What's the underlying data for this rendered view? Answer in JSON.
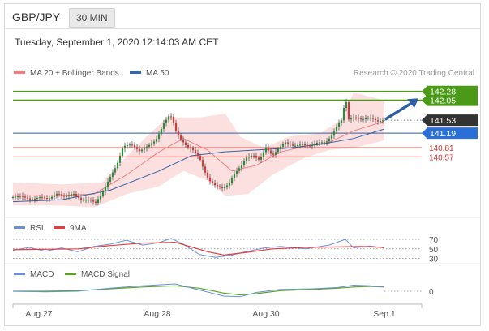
{
  "header": {
    "symbol": "GBP/JPY",
    "timeframe": "30 MIN"
  },
  "date_line": "Tuesday, September 1, 2020 12:14:03 AM CET",
  "colors": {
    "ma20": "#f08080",
    "ma50": "#3465a4",
    "band": "#fbd6d6",
    "resistance": "#4a9a17",
    "support": "#c33",
    "pivot": "#2a5fa8",
    "price": "#333333",
    "rsi": "#6a8fd8",
    "ma9": "#e23c3c",
    "macd": "#6a8fd8",
    "signal": "#5aa520",
    "arrow": "#2f5fa0"
  },
  "chart_data": [
    {
      "type": "candlestick",
      "legend": [
        {
          "name": "MA 20 + Bollinger Bands",
          "color": "#f08080"
        },
        {
          "name": "MA 50",
          "color": "#3465a4"
        }
      ],
      "credit": "Research © 2020 Trading Central",
      "x_ticks": [
        "Aug 27",
        "Aug 28",
        "Aug 30",
        "Sep 1"
      ],
      "ylim": [
        139.2,
        142.55
      ],
      "price_path": [
        [
          0,
          139.52
        ],
        [
          10,
          139.55
        ],
        [
          22,
          139.45
        ],
        [
          34,
          139.52
        ],
        [
          44,
          139.47
        ],
        [
          55,
          139.62
        ],
        [
          64,
          139.52
        ],
        [
          74,
          139.62
        ],
        [
          84,
          139.45
        ],
        [
          94,
          139.45
        ],
        [
          102,
          139.37
        ],
        [
          110,
          139.62
        ],
        [
          120,
          140.05
        ],
        [
          128,
          140.35
        ],
        [
          136,
          140.85
        ],
        [
          146,
          140.9
        ],
        [
          156,
          140.72
        ],
        [
          166,
          140.85
        ],
        [
          176,
          141.0
        ],
        [
          182,
          141.25
        ],
        [
          186,
          141.45
        ],
        [
          192,
          141.63
        ],
        [
          196,
          141.62
        ],
        [
          200,
          141.3
        ],
        [
          206,
          141.05
        ],
        [
          214,
          140.85
        ],
        [
          222,
          140.75
        ],
        [
          230,
          140.55
        ],
        [
          236,
          140.2
        ],
        [
          242,
          139.95
        ],
        [
          250,
          139.82
        ],
        [
          258,
          139.75
        ],
        [
          266,
          139.85
        ],
        [
          272,
          140.1
        ],
        [
          280,
          140.3
        ],
        [
          288,
          140.55
        ],
        [
          296,
          140.62
        ],
        [
          304,
          140.48
        ],
        [
          312,
          140.82
        ],
        [
          320,
          140.6
        ],
        [
          328,
          140.8
        ],
        [
          336,
          140.95
        ],
        [
          346,
          140.85
        ],
        [
          356,
          140.9
        ],
        [
          366,
          140.85
        ],
        [
          376,
          140.95
        ],
        [
          386,
          140.95
        ],
        [
          394,
          141.15
        ],
        [
          400,
          141.4
        ],
        [
          406,
          141.55
        ],
        [
          410,
          142.15
        ],
        [
          414,
          141.55
        ],
        [
          420,
          141.6
        ],
        [
          430,
          141.55
        ],
        [
          440,
          141.6
        ],
        [
          450,
          141.5
        ],
        [
          458,
          141.53
        ]
      ],
      "ma20_path": [
        [
          0,
          139.55
        ],
        [
          50,
          139.55
        ],
        [
          100,
          139.6
        ],
        [
          140,
          140.1
        ],
        [
          180,
          140.7
        ],
        [
          210,
          141.05
        ],
        [
          240,
          140.75
        ],
        [
          270,
          140.2
        ],
        [
          300,
          140.35
        ],
        [
          330,
          140.7
        ],
        [
          360,
          140.85
        ],
        [
          390,
          140.95
        ],
        [
          420,
          141.25
        ],
        [
          458,
          141.5
        ]
      ],
      "bb_upper_path": [
        [
          0,
          139.9
        ],
        [
          60,
          139.85
        ],
        [
          110,
          139.9
        ],
        [
          150,
          140.8
        ],
        [
          190,
          141.6
        ],
        [
          230,
          141.6
        ],
        [
          262,
          141.7
        ],
        [
          280,
          141.1
        ],
        [
          310,
          140.8
        ],
        [
          340,
          141.1
        ],
        [
          380,
          141.2
        ],
        [
          405,
          141.55
        ],
        [
          420,
          142.25
        ],
        [
          458,
          142.05
        ]
      ],
      "bb_lower_path": [
        [
          0,
          139.3
        ],
        [
          60,
          139.3
        ],
        [
          100,
          139.25
        ],
        [
          140,
          139.6
        ],
        [
          180,
          139.8
        ],
        [
          210,
          140.2
        ],
        [
          240,
          139.95
        ],
        [
          262,
          139.55
        ],
        [
          290,
          139.6
        ],
        [
          320,
          140.1
        ],
        [
          360,
          140.55
        ],
        [
          390,
          140.75
        ],
        [
          420,
          140.8
        ],
        [
          458,
          141.0
        ]
      ],
      "ma50_path": [
        [
          0,
          139.4
        ],
        [
          60,
          139.45
        ],
        [
          120,
          139.7
        ],
        [
          180,
          140.2
        ],
        [
          220,
          140.6
        ],
        [
          260,
          140.7
        ],
        [
          300,
          140.75
        ],
        [
          340,
          140.8
        ],
        [
          380,
          140.9
        ],
        [
          420,
          141.05
        ],
        [
          458,
          141.3
        ]
      ],
      "levels": [
        {
          "label": "142.28",
          "value": 142.28,
          "kind": "resistance"
        },
        {
          "label": "142.05",
          "value": 142.05,
          "kind": "resistance"
        },
        {
          "label": "141.53",
          "value": 141.53,
          "kind": "price"
        },
        {
          "label": "141.19",
          "value": 141.19,
          "kind": "pivot"
        },
        {
          "label": "140.81",
          "value": 140.81,
          "kind": "support"
        },
        {
          "label": "140.57",
          "value": 140.57,
          "kind": "support"
        }
      ]
    },
    {
      "type": "line",
      "legend": [
        {
          "name": "RSI",
          "color": "#6a8fd8"
        },
        {
          "name": "9MA",
          "color": "#e23c3c"
        }
      ],
      "ylim": [
        24,
        82
      ],
      "levels": [
        {
          "label": "70",
          "value": 70
        },
        {
          "label": "50",
          "value": 50
        },
        {
          "label": "30",
          "value": 30
        }
      ],
      "rsi": [
        [
          0,
          47
        ],
        [
          20,
          53
        ],
        [
          40,
          45
        ],
        [
          60,
          52
        ],
        [
          80,
          44
        ],
        [
          100,
          55
        ],
        [
          120,
          60
        ],
        [
          140,
          68
        ],
        [
          160,
          58
        ],
        [
          180,
          63
        ],
        [
          195,
          72
        ],
        [
          210,
          60
        ],
        [
          230,
          38
        ],
        [
          250,
          32
        ],
        [
          270,
          37
        ],
        [
          290,
          45
        ],
        [
          310,
          52
        ],
        [
          330,
          55
        ],
        [
          360,
          50
        ],
        [
          390,
          58
        ],
        [
          410,
          70
        ],
        [
          420,
          52
        ],
        [
          440,
          56
        ],
        [
          458,
          52
        ]
      ],
      "ma9": [
        [
          0,
          48
        ],
        [
          40,
          49
        ],
        [
          80,
          50
        ],
        [
          120,
          57
        ],
        [
          160,
          62
        ],
        [
          200,
          64
        ],
        [
          240,
          44
        ],
        [
          260,
          37
        ],
        [
          290,
          43
        ],
        [
          320,
          50
        ],
        [
          360,
          53
        ],
        [
          400,
          54
        ],
        [
          430,
          55
        ],
        [
          458,
          53
        ]
      ]
    },
    {
      "type": "line",
      "legend": [
        {
          "name": "MACD",
          "color": "#6a8fd8"
        },
        {
          "name": "MACD Signal",
          "color": "#5aa520"
        }
      ],
      "ylim": [
        -0.2,
        0.2
      ],
      "levels": [
        {
          "label": "0",
          "value": 0
        }
      ],
      "macd": [
        [
          0,
          0.0
        ],
        [
          40,
          -0.01
        ],
        [
          80,
          0.0
        ],
        [
          120,
          0.05
        ],
        [
          160,
          0.09
        ],
        [
          200,
          0.12
        ],
        [
          230,
          0.02
        ],
        [
          260,
          -0.08
        ],
        [
          280,
          -0.09
        ],
        [
          300,
          -0.02
        ],
        [
          330,
          0.03
        ],
        [
          370,
          0.04
        ],
        [
          400,
          0.06
        ],
        [
          420,
          0.1
        ],
        [
          440,
          0.09
        ],
        [
          458,
          0.07
        ]
      ],
      "signal": [
        [
          0,
          0.0
        ],
        [
          40,
          0.0
        ],
        [
          80,
          0.01
        ],
        [
          120,
          0.04
        ],
        [
          160,
          0.07
        ],
        [
          200,
          0.09
        ],
        [
          230,
          0.05
        ],
        [
          260,
          -0.03
        ],
        [
          280,
          -0.06
        ],
        [
          300,
          -0.04
        ],
        [
          330,
          0.01
        ],
        [
          370,
          0.03
        ],
        [
          400,
          0.05
        ],
        [
          420,
          0.07
        ],
        [
          440,
          0.08
        ],
        [
          458,
          0.07
        ]
      ]
    }
  ]
}
